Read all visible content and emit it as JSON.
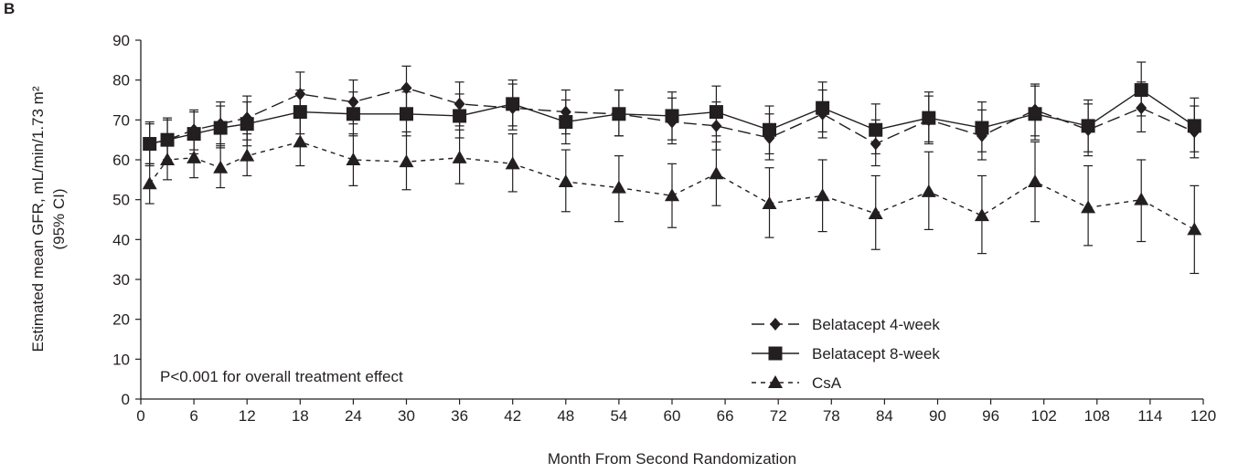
{
  "panel_label": "B",
  "colors": {
    "ink": "#231f20",
    "background": "#ffffff"
  },
  "chart_data": {
    "type": "line",
    "title": "",
    "xlabel": "Month From Second Randomization",
    "ylabel_line1": "Estimated mean GFR, mL/min/1.73 m²",
    "ylabel_line2": "(95% CI)",
    "xlim": [
      0,
      120
    ],
    "ylim": [
      0,
      90
    ],
    "x_ticks": [
      0,
      6,
      12,
      18,
      24,
      30,
      36,
      42,
      48,
      54,
      60,
      66,
      72,
      78,
      84,
      90,
      96,
      102,
      108,
      114,
      120
    ],
    "y_ticks": [
      0,
      10,
      20,
      30,
      40,
      50,
      60,
      70,
      80,
      90
    ],
    "grid": false,
    "legend_position": "bottom-right",
    "annotation": "P<0.001 for overall treatment effect",
    "series": [
      {
        "name": "Belatacept 4-week",
        "marker": "diamond",
        "line_style": "long-dash",
        "points": [
          {
            "x": 1,
            "y": 64,
            "lo": 59,
            "hi": 69
          },
          {
            "x": 3,
            "y": 65,
            "lo": 60,
            "hi": 70
          },
          {
            "x": 6,
            "y": 67.5,
            "lo": 62.5,
            "hi": 72.5
          },
          {
            "x": 9,
            "y": 69,
            "lo": 64,
            "hi": 74.5
          },
          {
            "x": 12,
            "y": 70.5,
            "lo": 65,
            "hi": 76
          },
          {
            "x": 18,
            "y": 76.5,
            "lo": 71,
            "hi": 82
          },
          {
            "x": 24,
            "y": 74.5,
            "lo": 69,
            "hi": 80
          },
          {
            "x": 30,
            "y": 78,
            "lo": 72.5,
            "hi": 83.5
          },
          {
            "x": 36,
            "y": 74,
            "lo": 68.5,
            "hi": 79.5
          },
          {
            "x": 42,
            "y": 73,
            "lo": 67.5,
            "hi": 79
          },
          {
            "x": 48,
            "y": 72,
            "lo": 66.5,
            "hi": 77.5
          },
          {
            "x": 54,
            "y": 71.5,
            "lo": 66,
            "hi": 77.5
          },
          {
            "x": 60,
            "y": 69.5,
            "lo": 64,
            "hi": 75.5
          },
          {
            "x": 65,
            "y": 68.5,
            "lo": 62.5,
            "hi": 74.5
          },
          {
            "x": 71,
            "y": 65.5,
            "lo": 60,
            "hi": 71.5
          },
          {
            "x": 77,
            "y": 71.5,
            "lo": 65.5,
            "hi": 77.5
          },
          {
            "x": 83,
            "y": 64,
            "lo": 58.5,
            "hi": 70
          },
          {
            "x": 89,
            "y": 70,
            "lo": 64,
            "hi": 76
          },
          {
            "x": 95,
            "y": 66,
            "lo": 60,
            "hi": 72.5
          },
          {
            "x": 101,
            "y": 72.5,
            "lo": 66,
            "hi": 79
          },
          {
            "x": 107,
            "y": 67.5,
            "lo": 61,
            "hi": 74
          },
          {
            "x": 113,
            "y": 73,
            "lo": 67,
            "hi": 79.5
          },
          {
            "x": 119,
            "y": 67,
            "lo": 60.5,
            "hi": 73.5
          }
        ]
      },
      {
        "name": "Belatacept 8-week",
        "marker": "square",
        "line_style": "solid",
        "points": [
          {
            "x": 1,
            "y": 64,
            "lo": 58.5,
            "hi": 69.5
          },
          {
            "x": 3,
            "y": 65,
            "lo": 60,
            "hi": 70.5
          },
          {
            "x": 6,
            "y": 66.5,
            "lo": 61.5,
            "hi": 72
          },
          {
            "x": 9,
            "y": 68,
            "lo": 63,
            "hi": 73.5
          },
          {
            "x": 12,
            "y": 69,
            "lo": 63.5,
            "hi": 74.5
          },
          {
            "x": 18,
            "y": 72,
            "lo": 66.5,
            "hi": 77.5
          },
          {
            "x": 24,
            "y": 71.5,
            "lo": 66,
            "hi": 77
          },
          {
            "x": 30,
            "y": 71.5,
            "lo": 66,
            "hi": 77
          },
          {
            "x": 36,
            "y": 71,
            "lo": 65.5,
            "hi": 76.5
          },
          {
            "x": 42,
            "y": 74,
            "lo": 68.5,
            "hi": 80
          },
          {
            "x": 48,
            "y": 69.5,
            "lo": 64,
            "hi": 75
          },
          {
            "x": 54,
            "y": 71.5,
            "lo": 66,
            "hi": 77.5
          },
          {
            "x": 60,
            "y": 71,
            "lo": 65,
            "hi": 77
          },
          {
            "x": 65,
            "y": 72,
            "lo": 66,
            "hi": 78.5
          },
          {
            "x": 71,
            "y": 67.5,
            "lo": 61.5,
            "hi": 73.5
          },
          {
            "x": 77,
            "y": 73,
            "lo": 67,
            "hi": 79.5
          },
          {
            "x": 83,
            "y": 67.5,
            "lo": 61.5,
            "hi": 74
          },
          {
            "x": 89,
            "y": 70.5,
            "lo": 64.5,
            "hi": 77
          },
          {
            "x": 95,
            "y": 68,
            "lo": 62,
            "hi": 74.5
          },
          {
            "x": 101,
            "y": 71.5,
            "lo": 65,
            "hi": 78.5
          },
          {
            "x": 107,
            "y": 68.5,
            "lo": 62,
            "hi": 75
          },
          {
            "x": 113,
            "y": 77.5,
            "lo": 71,
            "hi": 84.5
          },
          {
            "x": 119,
            "y": 68.5,
            "lo": 62,
            "hi": 75.5
          }
        ]
      },
      {
        "name": "CsA",
        "marker": "triangle",
        "line_style": "short-dash",
        "points": [
          {
            "x": 1,
            "y": 54,
            "lo": 49,
            "hi": 59
          },
          {
            "x": 3,
            "y": 60,
            "lo": 55,
            "hi": 65
          },
          {
            "x": 6,
            "y": 60.5,
            "lo": 55.5,
            "hi": 65.5
          },
          {
            "x": 9,
            "y": 58,
            "lo": 53,
            "hi": 63.5
          },
          {
            "x": 12,
            "y": 61,
            "lo": 56,
            "hi": 66.5
          },
          {
            "x": 18,
            "y": 64.5,
            "lo": 58.5,
            "hi": 70.5
          },
          {
            "x": 24,
            "y": 60,
            "lo": 53.5,
            "hi": 66.5
          },
          {
            "x": 30,
            "y": 59.5,
            "lo": 52.5,
            "hi": 67
          },
          {
            "x": 36,
            "y": 60.5,
            "lo": 54,
            "hi": 67.5
          },
          {
            "x": 42,
            "y": 59,
            "lo": 52,
            "hi": 66.5
          },
          {
            "x": 48,
            "y": 54.5,
            "lo": 47,
            "hi": 62.5
          },
          {
            "x": 54,
            "y": 53,
            "lo": 44.5,
            "hi": 61
          },
          {
            "x": 60,
            "y": 51,
            "lo": 43,
            "hi": 59
          },
          {
            "x": 65,
            "y": 56.5,
            "lo": 48.5,
            "hi": 64.5
          },
          {
            "x": 71,
            "y": 49,
            "lo": 40.5,
            "hi": 58
          },
          {
            "x": 77,
            "y": 51,
            "lo": 42,
            "hi": 60
          },
          {
            "x": 83,
            "y": 46.5,
            "lo": 37.5,
            "hi": 56
          },
          {
            "x": 89,
            "y": 52,
            "lo": 42.5,
            "hi": 62
          },
          {
            "x": 95,
            "y": 46,
            "lo": 36.5,
            "hi": 56
          },
          {
            "x": 101,
            "y": 54.5,
            "lo": 44.5,
            "hi": 64.5
          },
          {
            "x": 107,
            "y": 48,
            "lo": 38.5,
            "hi": 58.5
          },
          {
            "x": 113,
            "y": 50,
            "lo": 39.5,
            "hi": 60
          },
          {
            "x": 119,
            "y": 42.5,
            "lo": 31.5,
            "hi": 53.5
          }
        ]
      }
    ]
  }
}
